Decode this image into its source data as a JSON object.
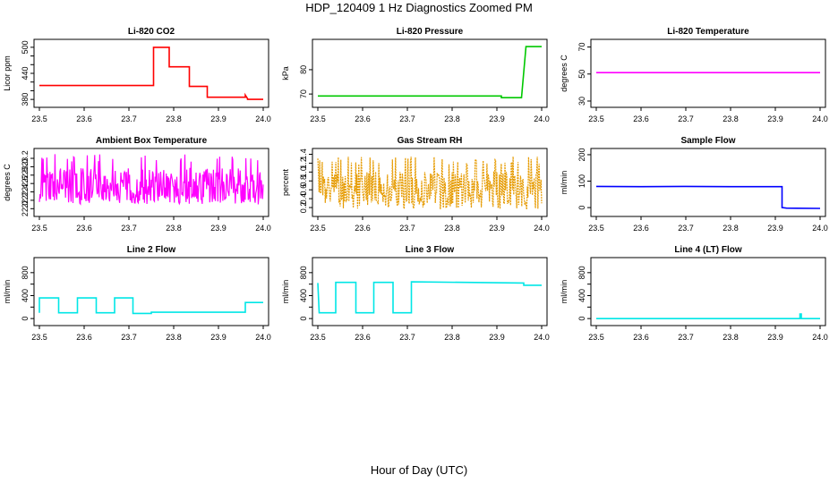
{
  "title": "HDP_120409  1 Hz Diagnostics Zoomed PM",
  "xlabel": "Hour of Day (UTC)",
  "chart_data": [
    {
      "type": "line",
      "title": "Li-820 CO2",
      "ylabel": "Licor ppm",
      "color": "#ff0000",
      "xlim": [
        23.5,
        24.0
      ],
      "ylim": [
        370,
        510
      ],
      "xticks": [
        "23.5",
        "23.6",
        "23.7",
        "23.8",
        "23.9",
        "24.0"
      ],
      "yticks": [
        380,
        440,
        500
      ],
      "yticks_minor": [
        400,
        420,
        460,
        480
      ],
      "x": [
        23.5,
        23.755,
        23.755,
        23.765,
        23.79,
        23.79,
        23.835,
        23.835,
        23.875,
        23.875,
        23.96,
        23.96,
        23.965,
        23.965,
        24.0
      ],
      "y": [
        412,
        412,
        500,
        500,
        500,
        455,
        455,
        410,
        410,
        385,
        385,
        390,
        382,
        380,
        380
      ]
    },
    {
      "type": "line",
      "title": "Li-820 Pressure",
      "ylabel": "kPa",
      "color": "#00c800",
      "xlim": [
        23.5,
        24.0
      ],
      "ylim": [
        66,
        91
      ],
      "xticks": [
        "23.5",
        "23.6",
        "23.7",
        "23.8",
        "23.9",
        "24.0"
      ],
      "yticks": [
        70,
        80
      ],
      "x": [
        23.5,
        23.91,
        23.91,
        23.955,
        23.96,
        23.965,
        23.97,
        24.0
      ],
      "y": [
        69.2,
        69.2,
        68.5,
        68.5,
        79,
        89.5,
        89.5,
        89.5
      ]
    },
    {
      "type": "line",
      "title": "Li-820 Temperature",
      "ylabel": "degrees C",
      "color": "#ff00ff",
      "xlim": [
        23.5,
        24.0
      ],
      "ylim": [
        28,
        73
      ],
      "xticks": [
        "23.5",
        "23.6",
        "23.7",
        "23.8",
        "23.9",
        "24.0"
      ],
      "yticks": [
        30,
        50,
        70
      ],
      "x": [
        23.5,
        24.0
      ],
      "y": [
        51,
        51
      ]
    },
    {
      "type": "line",
      "title": "Ambient Box Temperature",
      "ylabel": "degrees C",
      "color": "#ff00ff",
      "xlim": [
        23.5,
        24.0
      ],
      "ylim": [
        21.9,
        23.35
      ],
      "xticks": [
        "23.5",
        "23.6",
        "23.7",
        "23.8",
        "23.9",
        "24.0"
      ],
      "yticks": [
        "22.0",
        "22.2",
        "22.4",
        "22.6",
        "22.8",
        "23.0",
        "23.2"
      ],
      "noise": {
        "center": 22.55,
        "low": 22.1,
        "high": 23.3
      }
    },
    {
      "type": "line",
      "title": "Gas Stream RH",
      "ylabel": "percent",
      "color": "#e69b00",
      "xlim": [
        23.5,
        24.0
      ],
      "ylim": [
        0.08,
        1.45
      ],
      "xticks": [
        "23.5",
        "23.6",
        "23.7",
        "23.8",
        "23.9",
        "24.0"
      ],
      "yticks": [
        "0.2",
        "0.4",
        "0.6",
        "0.8",
        "1.0",
        "1.2",
        "1.4"
      ],
      "noise": {
        "center": 0.6,
        "low": 0.15,
        "high": 1.35
      }
    },
    {
      "type": "line",
      "title": "Sample Flow",
      "ylabel": "ml/min",
      "color": "#0000ff",
      "xlim": [
        23.5,
        24.0
      ],
      "ylim": [
        -20,
        210
      ],
      "xticks": [
        "23.5",
        "23.6",
        "23.7",
        "23.8",
        "23.9",
        "24.0"
      ],
      "yticks": [
        0,
        100,
        200
      ],
      "x": [
        23.5,
        23.6,
        23.7,
        23.8,
        23.915,
        23.915,
        23.925,
        24.0
      ],
      "y": [
        80,
        79,
        80,
        79,
        79,
        0,
        -2,
        -3
      ]
    },
    {
      "type": "line",
      "title": "Line 2 Flow",
      "ylabel": "ml/min",
      "color": "#00e6e6",
      "xlim": [
        23.5,
        24.0
      ],
      "ylim": [
        -60,
        1000
      ],
      "xticks": [
        "23.5",
        "23.6",
        "23.7",
        "23.8",
        "23.9",
        "24.0"
      ],
      "yticks": [
        0,
        400,
        800
      ],
      "yticks_minor": [
        200,
        600
      ],
      "x": [
        23.5,
        23.5,
        23.543,
        23.543,
        23.585,
        23.585,
        23.627,
        23.627,
        23.668,
        23.668,
        23.709,
        23.709,
        23.75,
        23.75,
        23.96,
        23.96,
        24.0
      ],
      "y": [
        100,
        360,
        360,
        100,
        100,
        360,
        360,
        100,
        100,
        360,
        360,
        90,
        90,
        110,
        110,
        280,
        280
      ]
    },
    {
      "type": "line",
      "title": "Line 3 Flow",
      "ylabel": "ml/min",
      "color": "#00e6e6",
      "xlim": [
        23.5,
        24.0
      ],
      "ylim": [
        -60,
        1000
      ],
      "xticks": [
        "23.5",
        "23.6",
        "23.7",
        "23.8",
        "23.9",
        "24.0"
      ],
      "yticks": [
        0,
        400,
        800
      ],
      "yticks_minor": [
        200,
        600
      ],
      "x": [
        23.5,
        23.5,
        23.503,
        23.503,
        23.54,
        23.54,
        23.585,
        23.585,
        23.625,
        23.625,
        23.668,
        23.668,
        23.709,
        23.709,
        23.96,
        23.96,
        24.0
      ],
      "y": [
        620,
        620,
        100,
        100,
        100,
        630,
        630,
        100,
        100,
        630,
        630,
        100,
        100,
        640,
        620,
        580,
        580
      ]
    },
    {
      "type": "line",
      "title": "Line 4 (LT) Flow",
      "ylabel": "ml/min",
      "color": "#00e6e6",
      "xlim": [
        23.5,
        24.0
      ],
      "ylim": [
        -60,
        1000
      ],
      "xticks": [
        "23.5",
        "23.6",
        "23.7",
        "23.8",
        "23.9",
        "24.0"
      ],
      "yticks": [
        0,
        400,
        800
      ],
      "yticks_minor": [
        200,
        600
      ],
      "x": [
        23.5,
        23.955,
        23.955,
        23.958,
        23.958,
        24.0
      ],
      "y": [
        0,
        0,
        80,
        80,
        0,
        0
      ]
    }
  ]
}
